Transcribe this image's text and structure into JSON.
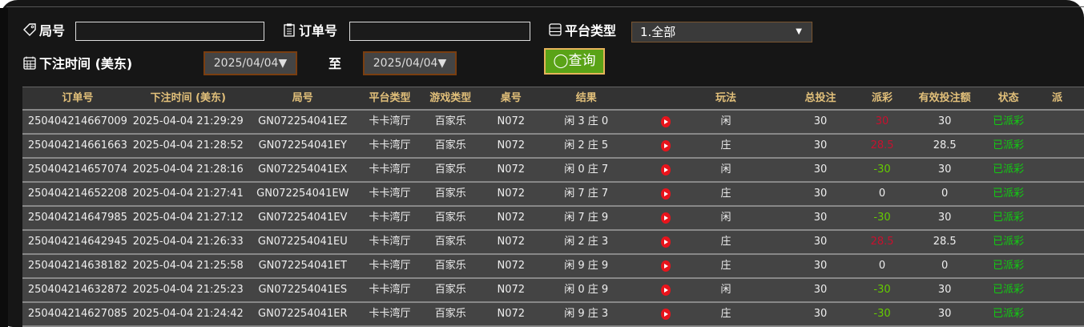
{
  "filters": {
    "round_label": "局号",
    "round_value": "",
    "order_label": "订单号",
    "order_value": "",
    "platform_label": "平台类型",
    "platform_selected": "1.全部",
    "time_label": "下注时间 (美东)",
    "date_from": "2025/04/04▼",
    "to_label": "至",
    "date_to": "2025/04/04▼",
    "query_label": "查询"
  },
  "table": {
    "headers": [
      "订单号",
      "下注时间 (美东)",
      "局号",
      "平台类型",
      "游戏类型",
      "桌号",
      "结果",
      "",
      "玩法",
      "总投注",
      "派彩",
      "有效投注额",
      "状态",
      "派"
    ],
    "rows": [
      {
        "order": "250404214667009",
        "time": "2025-04-04 21:29:29",
        "round": "GN072254041EZ",
        "platform": "卡卡湾厅",
        "game": "百家乐",
        "table": "N072",
        "result": "闲 3 庄 0",
        "bet": "闲",
        "total": "30",
        "payout": "30",
        "payout_color": "red",
        "valid": "30",
        "status": "已派彩"
      },
      {
        "order": "250404214661663",
        "time": "2025-04-04 21:28:52",
        "round": "GN072254041EY",
        "platform": "卡卡湾厅",
        "game": "百家乐",
        "table": "N072",
        "result": "闲 2 庄 5",
        "bet": "庄",
        "total": "30",
        "payout": "28.5",
        "payout_color": "red",
        "valid": "28.5",
        "status": "已派彩"
      },
      {
        "order": "250404214657074",
        "time": "2025-04-04 21:28:16",
        "round": "GN072254041EX",
        "platform": "卡卡湾厅",
        "game": "百家乐",
        "table": "N072",
        "result": "闲 0 庄 7",
        "bet": "闲",
        "total": "30",
        "payout": "-30",
        "payout_color": "green",
        "valid": "30",
        "status": "已派彩"
      },
      {
        "order": "250404214652208",
        "time": "2025-04-04 21:27:41",
        "round": "GN072254041EW",
        "platform": "卡卡湾厅",
        "game": "百家乐",
        "table": "N072",
        "result": "闲 7 庄 7",
        "bet": "庄",
        "total": "30",
        "payout": "0",
        "payout_color": "white",
        "valid": "0",
        "status": "已派彩"
      },
      {
        "order": "250404214647985",
        "time": "2025-04-04 21:27:12",
        "round": "GN072254041EV",
        "platform": "卡卡湾厅",
        "game": "百家乐",
        "table": "N072",
        "result": "闲 7 庄 9",
        "bet": "闲",
        "total": "30",
        "payout": "-30",
        "payout_color": "green",
        "valid": "30",
        "status": "已派彩"
      },
      {
        "order": "250404214642945",
        "time": "2025-04-04 21:26:33",
        "round": "GN072254041EU",
        "platform": "卡卡湾厅",
        "game": "百家乐",
        "table": "N072",
        "result": "闲 2 庄 3",
        "bet": "庄",
        "total": "30",
        "payout": "28.5",
        "payout_color": "red",
        "valid": "28.5",
        "status": "已派彩"
      },
      {
        "order": "250404214638182",
        "time": "2025-04-04 21:25:58",
        "round": "GN072254041ET",
        "platform": "卡卡湾厅",
        "game": "百家乐",
        "table": "N072",
        "result": "闲 9 庄 9",
        "bet": "庄",
        "total": "30",
        "payout": "0",
        "payout_color": "white",
        "valid": "0",
        "status": "已派彩"
      },
      {
        "order": "250404214632872",
        "time": "2025-04-04 21:25:23",
        "round": "GN072254041ES",
        "platform": "卡卡湾厅",
        "game": "百家乐",
        "table": "N072",
        "result": "闲 0 庄 9",
        "bet": "闲",
        "total": "30",
        "payout": "-30",
        "payout_color": "green",
        "valid": "30",
        "status": "已派彩"
      },
      {
        "order": "250404214627085",
        "time": "2025-04-04 21:24:42",
        "round": "GN072254041ER",
        "platform": "卡卡湾厅",
        "game": "百家乐",
        "table": "N072",
        "result": "闲 9 庄 3",
        "bet": "庄",
        "total": "30",
        "payout": "-30",
        "payout_color": "green",
        "valid": "30",
        "status": "已派彩"
      }
    ]
  },
  "colors": {
    "header_text": "#e2c07a",
    "win": "#c8102e",
    "loss": "#66cc00",
    "status": "#11cc11",
    "query_button": "#5aa317"
  },
  "icons": {
    "round": "tag-icon",
    "order": "clipboard-icon",
    "platform": "server-icon",
    "time": "calendar-icon",
    "query": "search-icon",
    "replay": "play-icon"
  }
}
